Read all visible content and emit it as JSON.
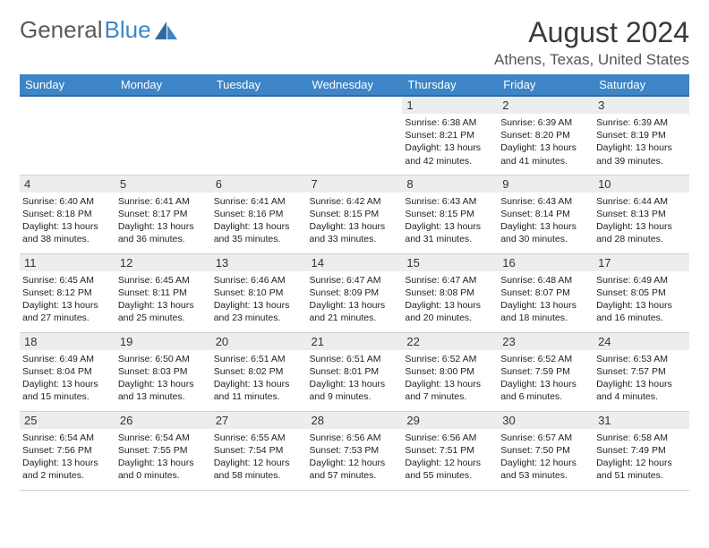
{
  "logo": {
    "part1": "General",
    "part2": "Blue"
  },
  "header": {
    "month_title": "August 2024",
    "location": "Athens, Texas, United States"
  },
  "colors": {
    "header_bg": "#3d85c6",
    "header_border": "#2e6ba3",
    "daynum_bg": "#ededed",
    "cell_border": "#d0d0d0",
    "text": "#000000",
    "bg": "#ffffff"
  },
  "weekdays": [
    "Sunday",
    "Monday",
    "Tuesday",
    "Wednesday",
    "Thursday",
    "Friday",
    "Saturday"
  ],
  "weeks": [
    [
      {
        "empty": true
      },
      {
        "empty": true
      },
      {
        "empty": true
      },
      {
        "empty": true
      },
      {
        "day": "1",
        "sunrise": "Sunrise: 6:38 AM",
        "sunset": "Sunset: 8:21 PM",
        "daylight1": "Daylight: 13 hours",
        "daylight2": "and 42 minutes."
      },
      {
        "day": "2",
        "sunrise": "Sunrise: 6:39 AM",
        "sunset": "Sunset: 8:20 PM",
        "daylight1": "Daylight: 13 hours",
        "daylight2": "and 41 minutes."
      },
      {
        "day": "3",
        "sunrise": "Sunrise: 6:39 AM",
        "sunset": "Sunset: 8:19 PM",
        "daylight1": "Daylight: 13 hours",
        "daylight2": "and 39 minutes."
      }
    ],
    [
      {
        "day": "4",
        "sunrise": "Sunrise: 6:40 AM",
        "sunset": "Sunset: 8:18 PM",
        "daylight1": "Daylight: 13 hours",
        "daylight2": "and 38 minutes."
      },
      {
        "day": "5",
        "sunrise": "Sunrise: 6:41 AM",
        "sunset": "Sunset: 8:17 PM",
        "daylight1": "Daylight: 13 hours",
        "daylight2": "and 36 minutes."
      },
      {
        "day": "6",
        "sunrise": "Sunrise: 6:41 AM",
        "sunset": "Sunset: 8:16 PM",
        "daylight1": "Daylight: 13 hours",
        "daylight2": "and 35 minutes."
      },
      {
        "day": "7",
        "sunrise": "Sunrise: 6:42 AM",
        "sunset": "Sunset: 8:15 PM",
        "daylight1": "Daylight: 13 hours",
        "daylight2": "and 33 minutes."
      },
      {
        "day": "8",
        "sunrise": "Sunrise: 6:43 AM",
        "sunset": "Sunset: 8:15 PM",
        "daylight1": "Daylight: 13 hours",
        "daylight2": "and 31 minutes."
      },
      {
        "day": "9",
        "sunrise": "Sunrise: 6:43 AM",
        "sunset": "Sunset: 8:14 PM",
        "daylight1": "Daylight: 13 hours",
        "daylight2": "and 30 minutes."
      },
      {
        "day": "10",
        "sunrise": "Sunrise: 6:44 AM",
        "sunset": "Sunset: 8:13 PM",
        "daylight1": "Daylight: 13 hours",
        "daylight2": "and 28 minutes."
      }
    ],
    [
      {
        "day": "11",
        "sunrise": "Sunrise: 6:45 AM",
        "sunset": "Sunset: 8:12 PM",
        "daylight1": "Daylight: 13 hours",
        "daylight2": "and 27 minutes."
      },
      {
        "day": "12",
        "sunrise": "Sunrise: 6:45 AM",
        "sunset": "Sunset: 8:11 PM",
        "daylight1": "Daylight: 13 hours",
        "daylight2": "and 25 minutes."
      },
      {
        "day": "13",
        "sunrise": "Sunrise: 6:46 AM",
        "sunset": "Sunset: 8:10 PM",
        "daylight1": "Daylight: 13 hours",
        "daylight2": "and 23 minutes."
      },
      {
        "day": "14",
        "sunrise": "Sunrise: 6:47 AM",
        "sunset": "Sunset: 8:09 PM",
        "daylight1": "Daylight: 13 hours",
        "daylight2": "and 21 minutes."
      },
      {
        "day": "15",
        "sunrise": "Sunrise: 6:47 AM",
        "sunset": "Sunset: 8:08 PM",
        "daylight1": "Daylight: 13 hours",
        "daylight2": "and 20 minutes."
      },
      {
        "day": "16",
        "sunrise": "Sunrise: 6:48 AM",
        "sunset": "Sunset: 8:07 PM",
        "daylight1": "Daylight: 13 hours",
        "daylight2": "and 18 minutes."
      },
      {
        "day": "17",
        "sunrise": "Sunrise: 6:49 AM",
        "sunset": "Sunset: 8:05 PM",
        "daylight1": "Daylight: 13 hours",
        "daylight2": "and 16 minutes."
      }
    ],
    [
      {
        "day": "18",
        "sunrise": "Sunrise: 6:49 AM",
        "sunset": "Sunset: 8:04 PM",
        "daylight1": "Daylight: 13 hours",
        "daylight2": "and 15 minutes."
      },
      {
        "day": "19",
        "sunrise": "Sunrise: 6:50 AM",
        "sunset": "Sunset: 8:03 PM",
        "daylight1": "Daylight: 13 hours",
        "daylight2": "and 13 minutes."
      },
      {
        "day": "20",
        "sunrise": "Sunrise: 6:51 AM",
        "sunset": "Sunset: 8:02 PM",
        "daylight1": "Daylight: 13 hours",
        "daylight2": "and 11 minutes."
      },
      {
        "day": "21",
        "sunrise": "Sunrise: 6:51 AM",
        "sunset": "Sunset: 8:01 PM",
        "daylight1": "Daylight: 13 hours",
        "daylight2": "and 9 minutes."
      },
      {
        "day": "22",
        "sunrise": "Sunrise: 6:52 AM",
        "sunset": "Sunset: 8:00 PM",
        "daylight1": "Daylight: 13 hours",
        "daylight2": "and 7 minutes."
      },
      {
        "day": "23",
        "sunrise": "Sunrise: 6:52 AM",
        "sunset": "Sunset: 7:59 PM",
        "daylight1": "Daylight: 13 hours",
        "daylight2": "and 6 minutes."
      },
      {
        "day": "24",
        "sunrise": "Sunrise: 6:53 AM",
        "sunset": "Sunset: 7:57 PM",
        "daylight1": "Daylight: 13 hours",
        "daylight2": "and 4 minutes."
      }
    ],
    [
      {
        "day": "25",
        "sunrise": "Sunrise: 6:54 AM",
        "sunset": "Sunset: 7:56 PM",
        "daylight1": "Daylight: 13 hours",
        "daylight2": "and 2 minutes."
      },
      {
        "day": "26",
        "sunrise": "Sunrise: 6:54 AM",
        "sunset": "Sunset: 7:55 PM",
        "daylight1": "Daylight: 13 hours",
        "daylight2": "and 0 minutes."
      },
      {
        "day": "27",
        "sunrise": "Sunrise: 6:55 AM",
        "sunset": "Sunset: 7:54 PM",
        "daylight1": "Daylight: 12 hours",
        "daylight2": "and 58 minutes."
      },
      {
        "day": "28",
        "sunrise": "Sunrise: 6:56 AM",
        "sunset": "Sunset: 7:53 PM",
        "daylight1": "Daylight: 12 hours",
        "daylight2": "and 57 minutes."
      },
      {
        "day": "29",
        "sunrise": "Sunrise: 6:56 AM",
        "sunset": "Sunset: 7:51 PM",
        "daylight1": "Daylight: 12 hours",
        "daylight2": "and 55 minutes."
      },
      {
        "day": "30",
        "sunrise": "Sunrise: 6:57 AM",
        "sunset": "Sunset: 7:50 PM",
        "daylight1": "Daylight: 12 hours",
        "daylight2": "and 53 minutes."
      },
      {
        "day": "31",
        "sunrise": "Sunrise: 6:58 AM",
        "sunset": "Sunset: 7:49 PM",
        "daylight1": "Daylight: 12 hours",
        "daylight2": "and 51 minutes."
      }
    ]
  ]
}
